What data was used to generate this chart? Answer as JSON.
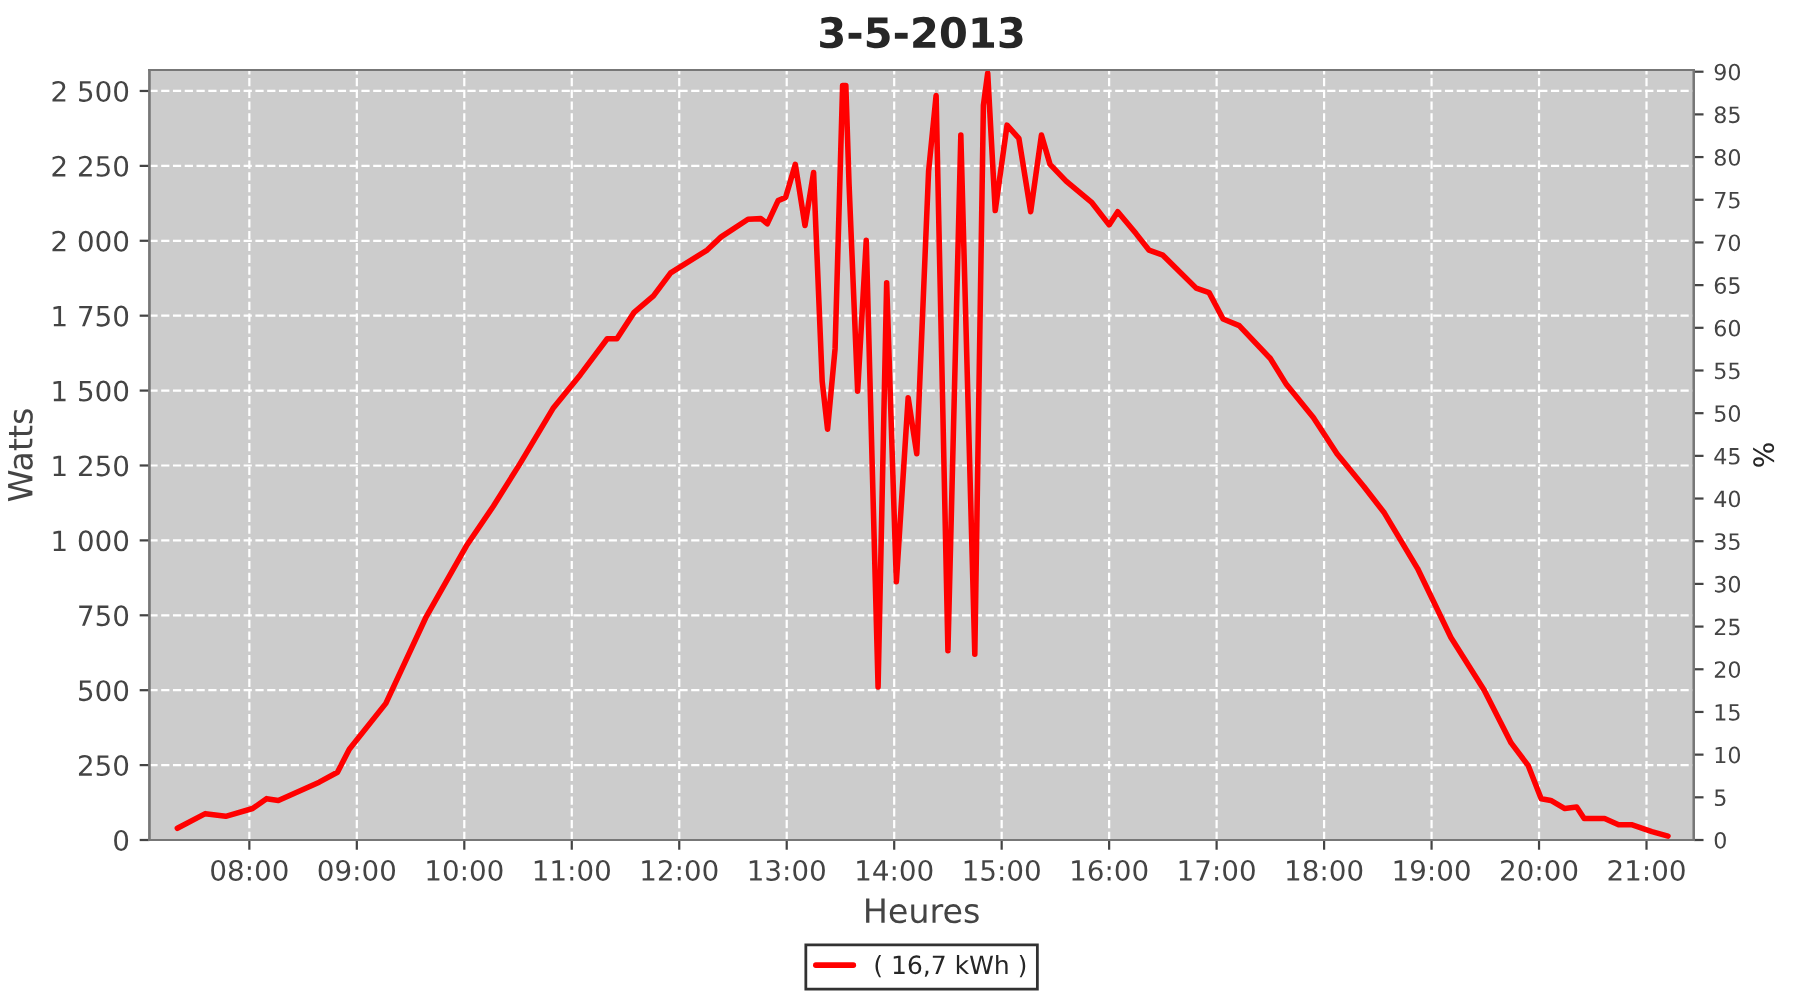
{
  "chart_data": {
    "type": "line",
    "title": "3-5-2013",
    "xlabel": "Heures",
    "ylabel": "Watts",
    "y2label": "%",
    "x": [
      7.33,
      7.59,
      7.78,
      8.03,
      8.16,
      8.27,
      8.65,
      8.82,
      8.93,
      9.27,
      9.64,
      10.02,
      10.27,
      10.52,
      10.83,
      11.08,
      11.33,
      11.42,
      11.58,
      11.76,
      11.92,
      12.26,
      12.39,
      12.64,
      12.76,
      12.82,
      12.92,
      12.99,
      13.08,
      13.17,
      13.25,
      13.33,
      13.38,
      13.45,
      13.52,
      13.55,
      13.58,
      13.66,
      13.74,
      13.85,
      13.93,
      14.02,
      14.13,
      14.21,
      14.32,
      14.39,
      14.5,
      14.62,
      14.75,
      14.83,
      14.87,
      14.94,
      15.05,
      15.16,
      15.27,
      15.37,
      15.45,
      15.6,
      15.84,
      16.0,
      16.08,
      16.25,
      16.37,
      16.5,
      16.81,
      16.93,
      17.06,
      17.21,
      17.5,
      17.65,
      17.9,
      18.12,
      18.37,
      18.56,
      18.87,
      19.18,
      19.49,
      19.74,
      19.9,
      20.02,
      20.11,
      20.24,
      20.35,
      20.42,
      20.61,
      20.74,
      20.86,
      21.05,
      21.2
    ],
    "series": [
      {
        "name": "( 16,7 kWh )",
        "color": "#ff0000",
        "values": [
          39,
          88,
          79,
          105,
          138,
          132,
          193,
          226,
          303,
          456,
          741,
          982,
          1114,
          1257,
          1443,
          1553,
          1673,
          1673,
          1761,
          1816,
          1893,
          1969,
          2013,
          2072,
          2074,
          2057,
          2134,
          2145,
          2255,
          2051,
          2228,
          1531,
          1371,
          1640,
          2518,
          2518,
          2189,
          1498,
          2002,
          511,
          1860,
          862,
          1476,
          1289,
          2232,
          2485,
          632,
          2353,
          620,
          2452,
          2560,
          2101,
          2386,
          2342,
          2097,
          2353,
          2255,
          2199,
          2127,
          2053,
          2097,
          2024,
          1969,
          1952,
          1842,
          1827,
          1739,
          1717,
          1607,
          1520,
          1410,
          1289,
          1180,
          1092,
          906,
          676,
          500,
          324,
          248,
          138,
          132,
          105,
          110,
          72,
          72,
          51,
          51,
          28,
          13
        ]
      }
    ],
    "xlim": [
      7.07,
      21.44
    ],
    "xticks": [
      {
        "value": 8,
        "label": "08:00"
      },
      {
        "value": 9,
        "label": "09:00"
      },
      {
        "value": 10,
        "label": "10:00"
      },
      {
        "value": 11,
        "label": "11:00"
      },
      {
        "value": 12,
        "label": "12:00"
      },
      {
        "value": 13,
        "label": "13:00"
      },
      {
        "value": 14,
        "label": "14:00"
      },
      {
        "value": 15,
        "label": "15:00"
      },
      {
        "value": 16,
        "label": "16:00"
      },
      {
        "value": 17,
        "label": "17:00"
      },
      {
        "value": 18,
        "label": "18:00"
      },
      {
        "value": 19,
        "label": "19:00"
      },
      {
        "value": 20,
        "label": "20:00"
      },
      {
        "value": 21,
        "label": "21:00"
      }
    ],
    "ylim": [
      0,
      2570
    ],
    "yticks": [
      0,
      250,
      500,
      750,
      {
        "value": 1000,
        "label": "1 000"
      },
      {
        "value": 1250,
        "label": "1 250"
      },
      {
        "value": 1500,
        "label": "1 500"
      },
      {
        "value": 1750,
        "label": "1 750"
      },
      {
        "value": 2000,
        "label": "2 000"
      },
      {
        "value": 2250,
        "label": "2 250"
      },
      {
        "value": 2500,
        "label": "2 500"
      }
    ],
    "y2lim": [
      0,
      90.2
    ],
    "y2ticks": [
      0,
      5,
      10,
      15,
      20,
      25,
      30,
      35,
      40,
      45,
      50,
      55,
      60,
      65,
      70,
      75,
      80,
      85,
      90
    ],
    "grid": true,
    "legend": "bottom",
    "marker": "none",
    "line_style": "solid"
  }
}
